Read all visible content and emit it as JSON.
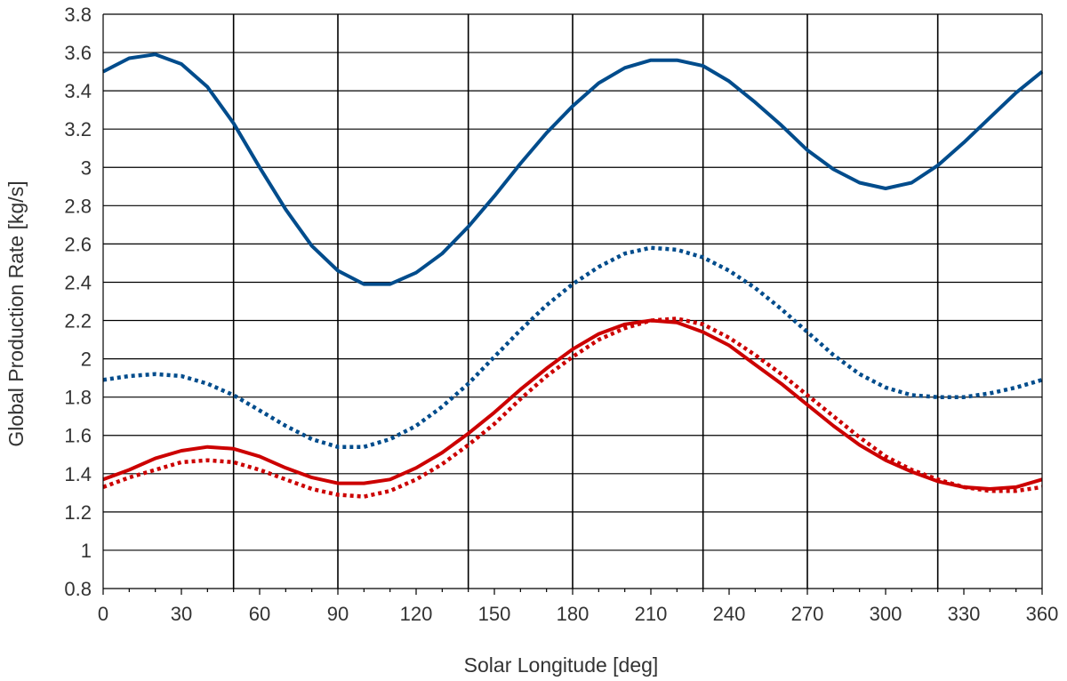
{
  "chart_data": {
    "type": "line",
    "xlabel": "Solar Longitude [deg]",
    "ylabel": "Global Production Rate [kg/s]",
    "xlim": [
      0,
      360
    ],
    "ylim": [
      0.8,
      3.8
    ],
    "x_ticks": [
      0,
      30,
      60,
      90,
      120,
      150,
      180,
      210,
      240,
      270,
      300,
      330,
      360
    ],
    "y_ticks": [
      0.8,
      1,
      1.2,
      1.4,
      1.6,
      1.8,
      2,
      2.2,
      2.4,
      2.6,
      2.8,
      3,
      3.2,
      3.4,
      3.6,
      3.8
    ],
    "x_tick_labels": [
      "0",
      "30",
      "60",
      "90",
      "120",
      "150",
      "180",
      "210",
      "240",
      "270",
      "300",
      "330",
      "360"
    ],
    "y_tick_labels": [
      "0.8",
      "1",
      "1.2",
      "1.4",
      "1.6",
      "1.8",
      "2",
      "2.2",
      "2.4",
      "2.6",
      "2.8",
      "3",
      "3.2",
      "3.4",
      "3.6",
      "3.8"
    ],
    "grid": {
      "horizontal": true,
      "vertical": false
    },
    "vertical_markers": [
      50,
      90,
      140,
      180,
      230,
      270,
      320
    ],
    "x": [
      0,
      10,
      20,
      30,
      40,
      50,
      60,
      70,
      80,
      90,
      100,
      110,
      120,
      130,
      140,
      150,
      160,
      170,
      180,
      190,
      200,
      210,
      220,
      230,
      240,
      250,
      260,
      270,
      280,
      290,
      300,
      310,
      320,
      330,
      340,
      350,
      360
    ],
    "series": [
      {
        "color": "#004c8c",
        "style": "solid",
        "values": [
          3.5,
          3.57,
          3.59,
          3.54,
          3.42,
          3.23,
          3.0,
          2.78,
          2.59,
          2.46,
          2.39,
          2.39,
          2.45,
          2.55,
          2.69,
          2.85,
          3.02,
          3.18,
          3.32,
          3.44,
          3.52,
          3.56,
          3.56,
          3.53,
          3.45,
          3.34,
          3.22,
          3.09,
          2.99,
          2.92,
          2.89,
          2.92,
          3.01,
          3.13,
          3.26,
          3.39,
          3.5
        ]
      },
      {
        "color": "#004c8c",
        "style": "dotted",
        "values": [
          1.89,
          1.91,
          1.92,
          1.91,
          1.87,
          1.81,
          1.73,
          1.65,
          1.58,
          1.54,
          1.54,
          1.58,
          1.65,
          1.75,
          1.87,
          2.01,
          2.15,
          2.28,
          2.39,
          2.48,
          2.55,
          2.58,
          2.57,
          2.53,
          2.46,
          2.37,
          2.26,
          2.14,
          2.02,
          1.92,
          1.85,
          1.81,
          1.8,
          1.8,
          1.82,
          1.85,
          1.89
        ]
      },
      {
        "color": "#cc0000",
        "style": "solid",
        "values": [
          1.37,
          1.42,
          1.48,
          1.52,
          1.54,
          1.53,
          1.49,
          1.43,
          1.38,
          1.35,
          1.35,
          1.37,
          1.43,
          1.51,
          1.61,
          1.72,
          1.84,
          1.95,
          2.05,
          2.13,
          2.18,
          2.2,
          2.19,
          2.14,
          2.07,
          1.97,
          1.87,
          1.76,
          1.65,
          1.55,
          1.47,
          1.41,
          1.36,
          1.33,
          1.32,
          1.33,
          1.37
        ]
      },
      {
        "color": "#cc0000",
        "style": "dotted",
        "values": [
          1.33,
          1.38,
          1.42,
          1.46,
          1.47,
          1.46,
          1.42,
          1.37,
          1.32,
          1.29,
          1.28,
          1.31,
          1.37,
          1.45,
          1.55,
          1.66,
          1.79,
          1.91,
          2.01,
          2.1,
          2.16,
          2.2,
          2.21,
          2.18,
          2.11,
          2.02,
          1.92,
          1.81,
          1.7,
          1.59,
          1.49,
          1.42,
          1.37,
          1.33,
          1.31,
          1.31,
          1.33
        ]
      }
    ]
  }
}
